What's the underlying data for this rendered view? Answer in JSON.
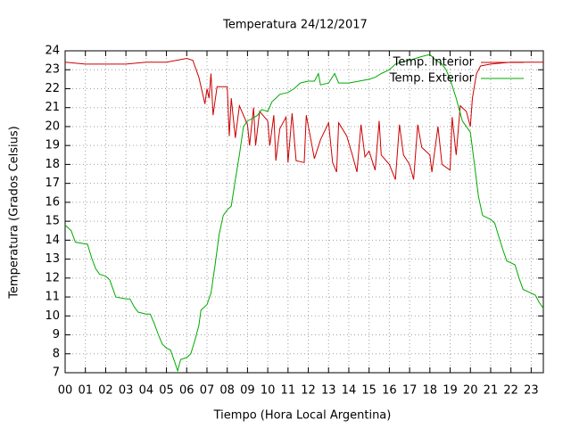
{
  "chart_data": {
    "type": "line",
    "title": "Temperatura 24/12/2017",
    "x_label": "Tiempo (Hora Local Argentina)",
    "y_label": "Temperatura (Grados Celsius)",
    "xlim": [
      0,
      23.6
    ],
    "ylim": [
      7,
      24
    ],
    "xticks": [
      {
        "value": 0,
        "label": "00"
      },
      {
        "value": 1,
        "label": "01"
      },
      {
        "value": 2,
        "label": "02"
      },
      {
        "value": 3,
        "label": "03"
      },
      {
        "value": 4,
        "label": "04"
      },
      {
        "value": 5,
        "label": "05"
      },
      {
        "value": 6,
        "label": "06"
      },
      {
        "value": 7,
        "label": "07"
      },
      {
        "value": 8,
        "label": "08"
      },
      {
        "value": 9,
        "label": "09"
      },
      10,
      11,
      12,
      13,
      14,
      15,
      16,
      17,
      18,
      19,
      20,
      21,
      22,
      23
    ],
    "yticks": [
      7,
      8,
      9,
      10,
      11,
      12,
      13,
      14,
      15,
      16,
      17,
      18,
      19,
      20,
      21,
      22,
      23,
      24
    ],
    "grid": true,
    "legend": "top right",
    "series": [
      {
        "name": "Temp. Interior",
        "color": "#cc0000",
        "x": [
          0,
          1,
          2,
          3,
          4,
          5,
          6,
          6.3,
          6.6,
          6.9,
          7,
          7.1,
          7.2,
          7.3,
          7.5,
          8,
          8.1,
          8.2,
          8.4,
          8.6,
          9,
          9.1,
          9.3,
          9.4,
          9.6,
          10,
          10.1,
          10.3,
          10.4,
          10.6,
          10.9,
          11,
          11.2,
          11.4,
          11.8,
          11.9,
          12.3,
          12.6,
          13,
          13.2,
          13.4,
          13.5,
          13.9,
          14.2,
          14.4,
          14.6,
          14.8,
          15,
          15.3,
          15.5,
          15.6,
          16,
          16.3,
          16.5,
          16.7,
          17,
          17.2,
          17.4,
          17.6,
          18,
          18.1,
          18.4,
          18.6,
          19,
          19.1,
          19.3,
          19.5,
          19.8,
          20,
          20.1,
          20.3,
          20.5,
          21,
          22,
          23.6
        ],
        "values": [
          23.4,
          23.3,
          23.3,
          23.3,
          23.4,
          23.4,
          23.6,
          23.5,
          22.6,
          21.2,
          22,
          21.5,
          22.8,
          20.6,
          22.1,
          22.1,
          19.5,
          21.5,
          19.4,
          21.1,
          20.1,
          19,
          21,
          19,
          20.8,
          20.3,
          19,
          20.6,
          18.2,
          19.9,
          20.5,
          18.1,
          20.7,
          18.2,
          18.1,
          20.6,
          18.3,
          19.3,
          20.2,
          18.1,
          17.6,
          20.2,
          19.5,
          18.4,
          17.6,
          20.1,
          18.4,
          18.7,
          17.7,
          20.3,
          18.5,
          18,
          17.2,
          20.1,
          18.5,
          18,
          17.2,
          20.1,
          18.9,
          18.5,
          17.6,
          20,
          18,
          17.7,
          20.5,
          18.5,
          21.1,
          20.8,
          20,
          21.5,
          22.8,
          23.2,
          23.3,
          23.4,
          23.4
        ]
      },
      {
        "name": "Temp. Exterior",
        "color": "#00aa00",
        "x": [
          0,
          0.3,
          0.5,
          1,
          1.1,
          1.3,
          1.5,
          1.7,
          2,
          2.2,
          2.5,
          3,
          3.2,
          3.4,
          3.6,
          4,
          4.2,
          4.4,
          4.6,
          4.8,
          5,
          5.2,
          5.4,
          5.55,
          5.7,
          6,
          6.2,
          6.4,
          6.6,
          6.7,
          7,
          7.2,
          7.4,
          7.6,
          7.8,
          8,
          8.2,
          8.4,
          8.6,
          8.8,
          9,
          9.2,
          9.5,
          9.7,
          10,
          10.2,
          10.4,
          10.6,
          11,
          11.3,
          11.6,
          12,
          12.3,
          12.5,
          12.6,
          13,
          13.3,
          13.5,
          14,
          14.5,
          15,
          15.3,
          15.6,
          16,
          16.3,
          16.6,
          17,
          17.3,
          17.6,
          18,
          18.3,
          18.6,
          18.8,
          19,
          19.3,
          19.6,
          19.8,
          20,
          20.2,
          20.4,
          20.6,
          21,
          21.2,
          21.4,
          21.6,
          21.8,
          22,
          22.2,
          22.4,
          22.6,
          23,
          23.2,
          23.4,
          23.6
        ],
        "values": [
          14.8,
          14.5,
          13.9,
          13.8,
          13.8,
          13.1,
          12.5,
          12.2,
          12.1,
          11.9,
          11,
          10.9,
          10.9,
          10.5,
          10.2,
          10.1,
          10.1,
          9.6,
          9,
          8.5,
          8.3,
          8.2,
          7.6,
          7.1,
          7.7,
          7.8,
          8,
          8.7,
          9.5,
          10.3,
          10.6,
          11.2,
          12.7,
          14.3,
          15.3,
          15.6,
          15.8,
          17.2,
          18.5,
          20,
          20.3,
          20.4,
          20.6,
          20.9,
          20.8,
          21.3,
          21.5,
          21.7,
          21.8,
          22,
          22.3,
          22.4,
          22.4,
          22.8,
          22.2,
          22.3,
          22.8,
          22.3,
          22.3,
          22.4,
          22.5,
          22.6,
          22.8,
          23,
          23.3,
          23.4,
          23.5,
          23.6,
          23.7,
          23.8,
          23.5,
          23.3,
          23,
          22.5,
          21.5,
          20.3,
          20,
          19.7,
          18,
          16.3,
          15.3,
          15.1,
          14.9,
          14.2,
          13.5,
          12.9,
          12.8,
          12.7,
          12,
          11.4,
          11.2,
          11.1,
          10.7,
          10.4
        ]
      }
    ]
  }
}
